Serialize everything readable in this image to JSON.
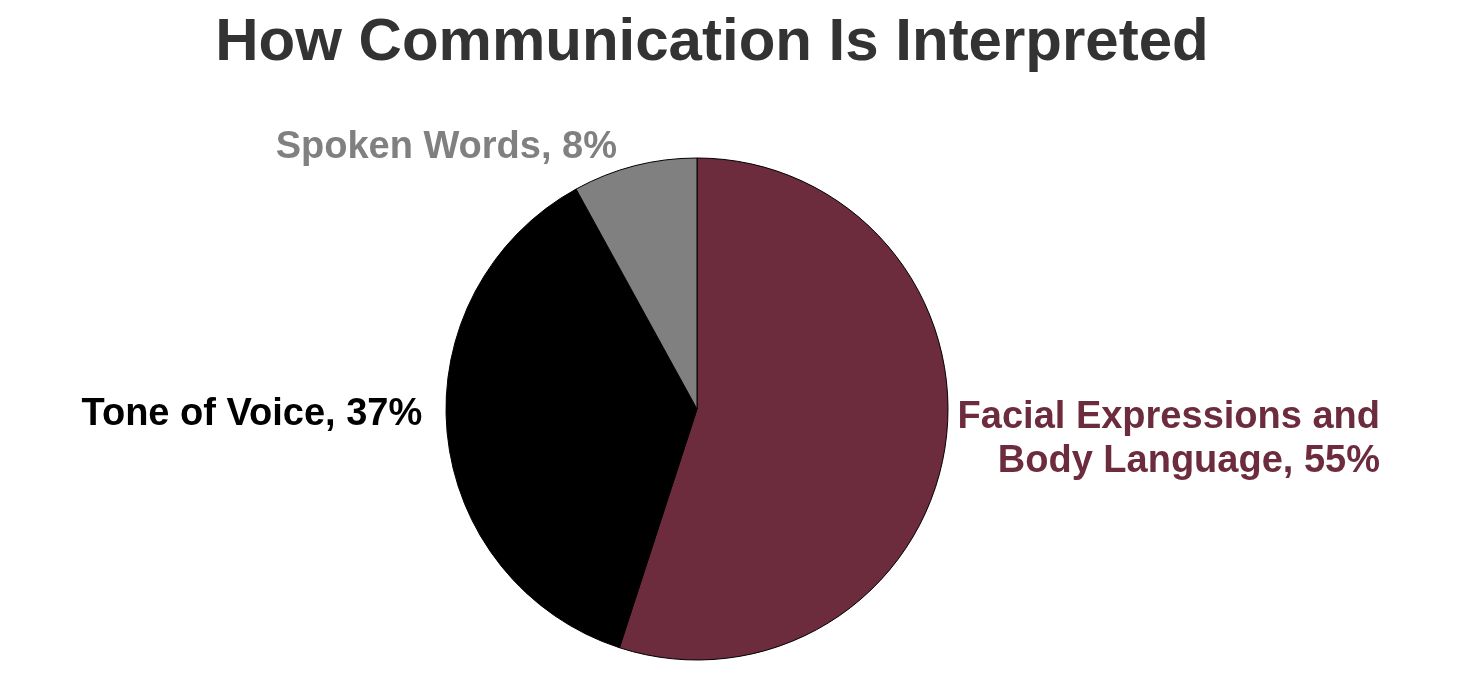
{
  "chart_data": {
    "type": "pie",
    "title": "How Communication Is Interpreted",
    "categories": [
      "Facial Expressions and Body Language",
      "Tone of Voice",
      "Spoken Words"
    ],
    "values": [
      55,
      37,
      8
    ],
    "value_labels": [
      "55%",
      "37%",
      "8%"
    ],
    "colors": [
      "#6d2c3e",
      "#000000",
      "#808080"
    ]
  }
}
